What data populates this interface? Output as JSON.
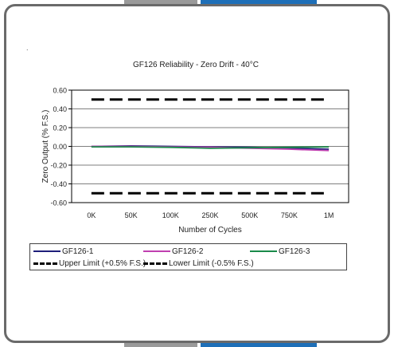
{
  "page": {
    "marker": "."
  },
  "chart_data": {
    "type": "line",
    "title": "GF126 Reliability - Zero Drift - 40°C",
    "xlabel": "Number of Cycles",
    "ylabel": "Zero Output (% F.S.)",
    "categories": [
      "0K",
      "50K",
      "100K",
      "250K",
      "500K",
      "750K",
      "1M"
    ],
    "ylim": [
      -0.6,
      0.6
    ],
    "yticks": [
      0.6,
      0.4,
      0.2,
      0.0,
      -0.2,
      -0.4,
      -0.6
    ],
    "ytick_labels": [
      "0.60",
      "0.40",
      "0.20",
      "0.00",
      "-0.20",
      "-0.40",
      "-0.60"
    ],
    "grid": true,
    "legend_position": "bottom",
    "series": [
      {
        "name": "GF126-1",
        "color": "#1f1f7a",
        "style": "solid",
        "values": [
          0.0,
          0.005,
          0.0,
          -0.005,
          -0.01,
          -0.02,
          -0.03
        ]
      },
      {
        "name": "GF126-2",
        "color": "#c040b0",
        "style": "solid",
        "values": [
          0.0,
          0.0,
          -0.005,
          -0.01,
          -0.02,
          -0.03,
          -0.045
        ]
      },
      {
        "name": "GF126-3",
        "color": "#1a8a4a",
        "style": "solid",
        "values": [
          -0.005,
          -0.005,
          -0.01,
          -0.02,
          -0.015,
          -0.01,
          -0.005
        ]
      },
      {
        "name": "Upper Limit (+0.5% F.S.)",
        "color": "#000000",
        "style": "dashed",
        "values": [
          0.5,
          0.5,
          0.5,
          0.5,
          0.5,
          0.5,
          0.5
        ]
      },
      {
        "name": "Lower Limit (-0.5% F.S.)",
        "color": "#000000",
        "style": "dashed",
        "values": [
          -0.5,
          -0.5,
          -0.5,
          -0.5,
          -0.5,
          -0.5,
          -0.5
        ]
      }
    ]
  }
}
